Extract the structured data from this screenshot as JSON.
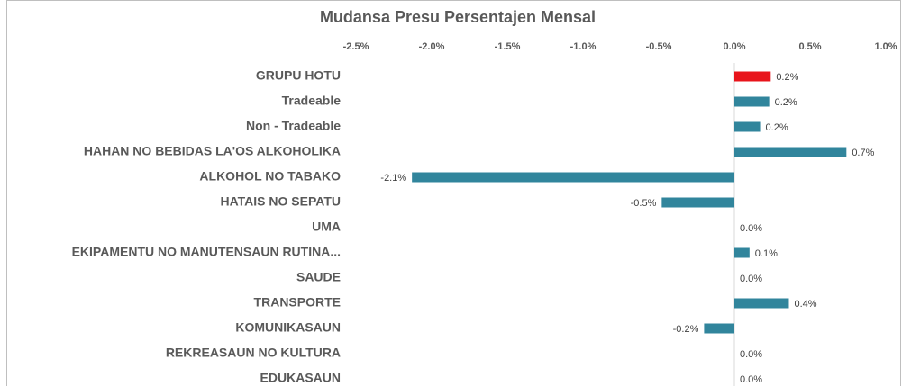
{
  "chart_data": {
    "type": "barh",
    "title": "Mudansa Presu Persentajen Mensal",
    "categories": [
      "GRUPU HOTU",
      "Tradeable",
      "Non - Tradeable",
      "HAHAN NO BEBIDAS LA'OS ALKOHOLIKA",
      "ALKOHOL NO TABAKO",
      "HATAIS NO SEPATU",
      "UMA",
      "EKIPAMENTU NO MANUTENSAUN RUTINA...",
      "SAUDE",
      "TRANSPORTE",
      "KOMUNIKASAUN",
      "REKREASAUN NO KULTURA",
      "EDUKASAUN"
    ],
    "values": [
      0.24,
      0.23,
      0.17,
      0.74,
      -2.13,
      -0.48,
      0,
      0.1,
      0,
      0.36,
      -0.2,
      0,
      0
    ],
    "value_labels": [
      "0.2%",
      "0.2%",
      "0.2%",
      "0.7%",
      "-2.1%",
      "-0.5%",
      "0.0%",
      "0.1%",
      "0.0%",
      "0.4%",
      "-0.2%",
      "0.0%",
      "0.0%"
    ],
    "colors": [
      "#e8141b",
      "#31859c",
      "#31859c",
      "#31859c",
      "#31859c",
      "#31859c",
      "#31859c",
      "#31859c",
      "#31859c",
      "#31859c",
      "#31859c",
      "#31859c",
      "#31859c"
    ],
    "xlim": [
      -2.5,
      1.0
    ],
    "xticks": [
      {
        "value": -2.5,
        "label": "-2.5%"
      },
      {
        "value": -2.0,
        "label": "-2.0%"
      },
      {
        "value": -1.5,
        "label": "-1.5%"
      },
      {
        "value": -1.0,
        "label": "-1.0%"
      },
      {
        "value": -0.5,
        "label": "-0.5%"
      },
      {
        "value": 0,
        "label": "0.0%"
      },
      {
        "value": 0.5,
        "label": "0.5%"
      },
      {
        "value": 1.0,
        "label": "1.0%"
      }
    ]
  }
}
